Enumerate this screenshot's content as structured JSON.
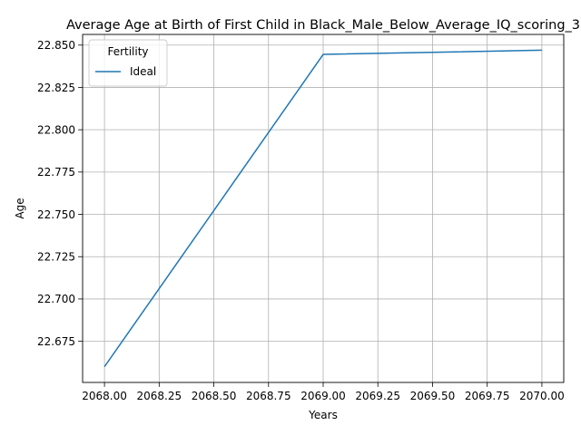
{
  "chart_data": {
    "type": "line",
    "title": "Average Age at Birth of First Child in Black_Male_Below_Average_IQ_scoring_3",
    "xlabel": "Years",
    "ylabel": "Age",
    "xlim": [
      2067.9,
      2070.1
    ],
    "ylim": [
      22.6507,
      22.8563
    ],
    "x_ticks": [
      2068.0,
      2068.25,
      2068.5,
      2068.75,
      2069.0,
      2069.25,
      2069.5,
      2069.75,
      2070.0
    ],
    "x_tick_labels": [
      "2068.00",
      "2068.25",
      "2068.50",
      "2068.75",
      "2069.00",
      "2069.25",
      "2069.50",
      "2069.75",
      "2070.00"
    ],
    "y_ticks": [
      22.675,
      22.7,
      22.725,
      22.75,
      22.775,
      22.8,
      22.825,
      22.85
    ],
    "y_tick_labels": [
      "22.675",
      "22.700",
      "22.725",
      "22.750",
      "22.775",
      "22.800",
      "22.825",
      "22.850"
    ],
    "grid": true,
    "legend": {
      "title": "Fertility",
      "position": "top-left"
    },
    "series": [
      {
        "name": "Ideal",
        "color": "#1f77b4",
        "x": [
          2068,
          2069,
          2070
        ],
        "y": [
          22.66,
          22.8445,
          22.847
        ]
      }
    ]
  }
}
